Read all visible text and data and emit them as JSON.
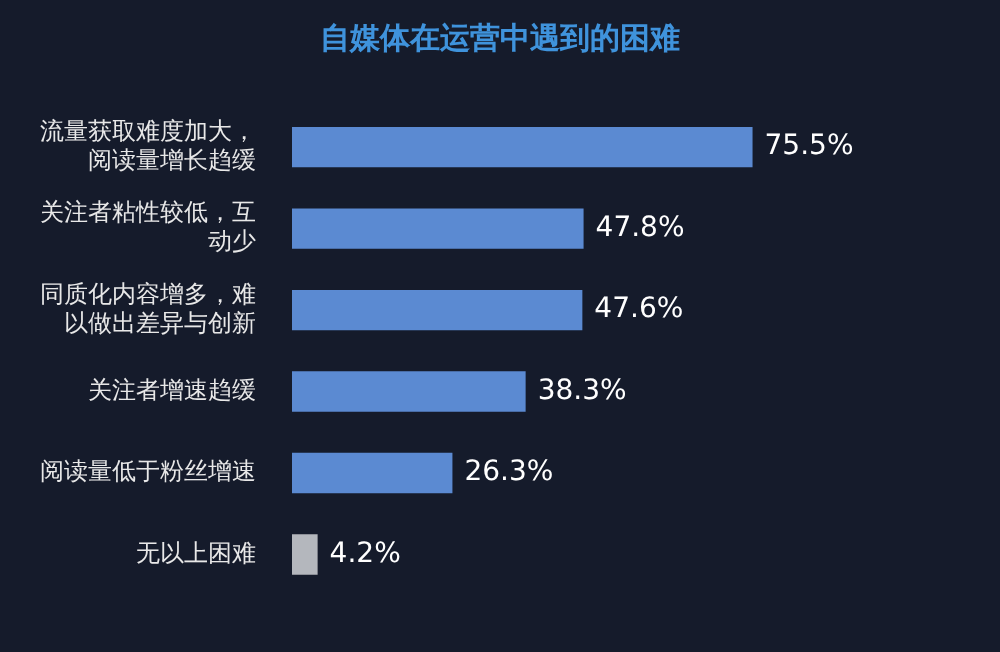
{
  "chart_data": {
    "type": "bar",
    "orientation": "horizontal",
    "title": "自媒体在运营中遇到的困难",
    "categories": [
      "流量获取难度加大，阅读量增长趋缓",
      "关注者粘性较低，互动少",
      "同质化内容增多，难以做出差异与创新",
      "关注者增速趋缓",
      "阅读量低于粉丝增速",
      "无以上困难"
    ],
    "values": [
      75.5,
      47.8,
      47.6,
      38.3,
      26.3,
      4.2
    ],
    "colors": [
      "#5b8ad2",
      "#5b8ad2",
      "#5b8ad2",
      "#5b8ad2",
      "#5b8ad2",
      "#b4b7bd"
    ],
    "value_labels": [
      "75.5%",
      "47.8%",
      "47.6%",
      "38.3%",
      "26.3%",
      "4.2%"
    ],
    "tick_labels": "y",
    "legend": false
  }
}
